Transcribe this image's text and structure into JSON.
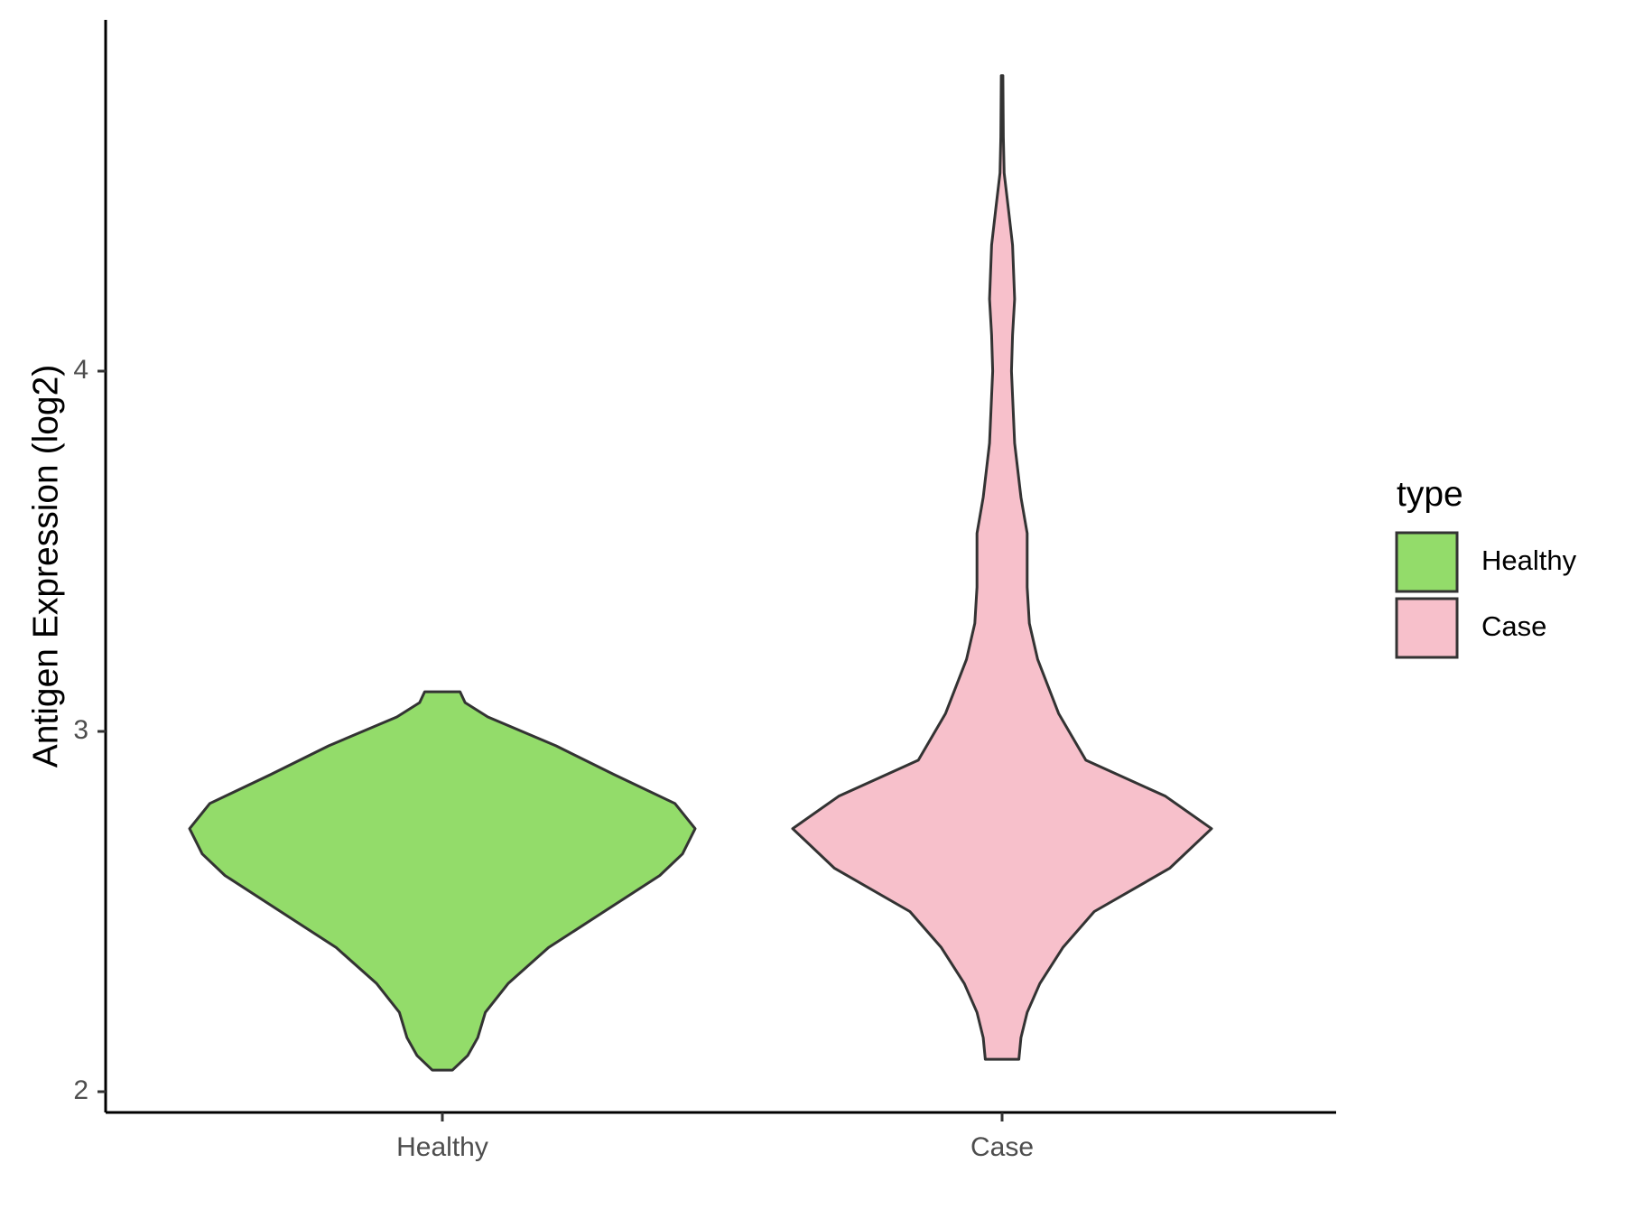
{
  "chart_data": {
    "type": "violin",
    "xlabel": "",
    "ylabel": "Antigen Expression (log2)",
    "ylim": [
      1.93,
      5.0
    ],
    "yticks": [
      "2",
      "3",
      "4"
    ],
    "categories": [
      "Healthy",
      "Case"
    ],
    "legend": {
      "title": "type",
      "position": "right"
    },
    "grid": false,
    "series": [
      {
        "name": "Healthy",
        "color": "#93dc6a",
        "min": 2.06,
        "max": 3.11,
        "density": [
          [
            2.06,
            0.04
          ],
          [
            2.1,
            0.1
          ],
          [
            2.15,
            0.14
          ],
          [
            2.22,
            0.17
          ],
          [
            2.3,
            0.26
          ],
          [
            2.4,
            0.42
          ],
          [
            2.5,
            0.64
          ],
          [
            2.6,
            0.86
          ],
          [
            2.66,
            0.95
          ],
          [
            2.73,
            1.0
          ],
          [
            2.8,
            0.92
          ],
          [
            2.88,
            0.68
          ],
          [
            2.96,
            0.45
          ],
          [
            3.04,
            0.18
          ],
          [
            3.08,
            0.09
          ],
          [
            3.11,
            0.07
          ]
        ]
      },
      {
        "name": "Case",
        "color": "#f7c0cb",
        "min": 2.09,
        "max": 4.82,
        "density": [
          [
            2.09,
            0.08
          ],
          [
            2.15,
            0.09
          ],
          [
            2.22,
            0.12
          ],
          [
            2.3,
            0.18
          ],
          [
            2.4,
            0.29
          ],
          [
            2.5,
            0.44
          ],
          [
            2.62,
            0.8
          ],
          [
            2.73,
            1.0
          ],
          [
            2.82,
            0.78
          ],
          [
            2.92,
            0.4
          ],
          [
            3.05,
            0.27
          ],
          [
            3.2,
            0.17
          ],
          [
            3.3,
            0.13
          ],
          [
            3.4,
            0.12
          ],
          [
            3.55,
            0.12
          ],
          [
            3.65,
            0.09
          ],
          [
            3.8,
            0.06
          ],
          [
            4.0,
            0.045
          ],
          [
            4.1,
            0.05
          ],
          [
            4.2,
            0.06
          ],
          [
            4.35,
            0.05
          ],
          [
            4.45,
            0.03
          ],
          [
            4.55,
            0.01
          ],
          [
            4.65,
            0.006
          ],
          [
            4.82,
            0.004
          ]
        ]
      }
    ]
  }
}
